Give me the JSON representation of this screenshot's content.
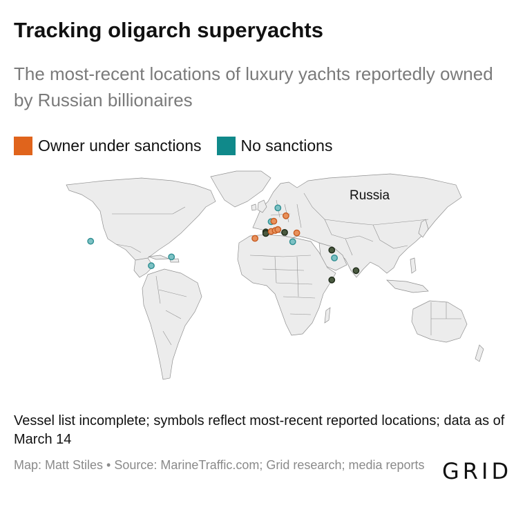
{
  "header": {
    "title": "Tracking oligarch superyachts",
    "subtitle": "The most-recent locations of luxury yachts reportedly owned by Russian billionaires"
  },
  "legend": {
    "items": [
      {
        "label": "Owner under sanctions",
        "color": "#e0641c"
      },
      {
        "label": "No sanctions",
        "color": "#10898a"
      }
    ]
  },
  "map": {
    "label": "Russia",
    "land_color": "#ececec",
    "border_color": "#8e8e8e",
    "markers": [
      {
        "name": "yacht-norway",
        "status": "no-sanctions",
        "lat": 68,
        "lon": 15
      },
      {
        "name": "yacht-baltic",
        "status": "sanctioned",
        "lat": 60,
        "lon": 21
      },
      {
        "name": "yacht-germany",
        "status": "no-sanctions",
        "lat": 54,
        "lon": 10
      },
      {
        "name": "yacht-hamburg",
        "status": "sanctioned",
        "lat": 54.5,
        "lon": 12
      },
      {
        "name": "yacht-spain",
        "status": "sanctioned",
        "lat": 37,
        "lon": -2
      },
      {
        "name": "yacht-riviera-1",
        "status": "overlap",
        "lat": 43.5,
        "lon": 6
      },
      {
        "name": "yacht-riviera-2",
        "status": "overlap",
        "lat": 42,
        "lon": 6
      },
      {
        "name": "yacht-italy-1",
        "status": "sanctioned",
        "lat": 44,
        "lon": 10
      },
      {
        "name": "yacht-italy-2",
        "status": "sanctioned",
        "lat": 45,
        "lon": 13
      },
      {
        "name": "yacht-italy-3",
        "status": "sanctioned",
        "lat": 46,
        "lon": 15
      },
      {
        "name": "yacht-adriatic",
        "status": "overlap",
        "lat": 43,
        "lon": 20
      },
      {
        "name": "yacht-turkey",
        "status": "sanctioned",
        "lat": 42.5,
        "lon": 29
      },
      {
        "name": "yacht-aegean",
        "status": "no-sanctions",
        "lat": 33.5,
        "lon": 26
      },
      {
        "name": "yacht-dubai",
        "status": "overlap",
        "lat": 25,
        "lon": 55
      },
      {
        "name": "yacht-india",
        "status": "no-sanctions",
        "lat": 17,
        "lon": 57
      },
      {
        "name": "yacht-maldives",
        "status": "overlap",
        "lat": 4,
        "lon": 73
      },
      {
        "name": "yacht-seychelles",
        "status": "overlap",
        "lat": -5.5,
        "lon": 55
      },
      {
        "name": "yacht-california",
        "status": "no-sanctions",
        "lat": 34,
        "lon": -124
      },
      {
        "name": "yacht-caribbean",
        "status": "no-sanctions",
        "lat": 18,
        "lon": -64
      },
      {
        "name": "yacht-panama",
        "status": "no-sanctions",
        "lat": 9,
        "lon": -79
      }
    ]
  },
  "footer": {
    "note": "Vessel list incomplete; symbols reflect most-recent reported locations; data as of March 14",
    "credit": "Map: Matt Stiles • Source: MarineTraffic.com; Grid research; media reports",
    "logo": "GRID"
  }
}
